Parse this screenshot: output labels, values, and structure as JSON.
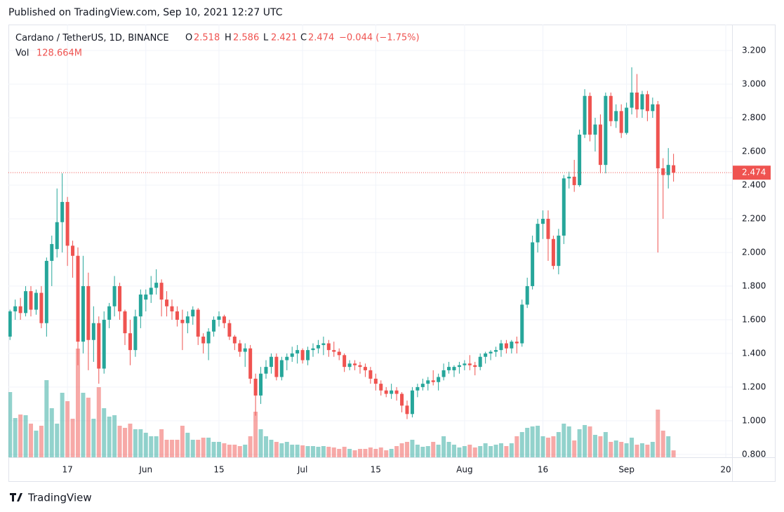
{
  "header": "Published on TradingView.com, Sep 10, 2021 12:27 UTC",
  "footer": "TradingView",
  "chart_data": {
    "type": "candlestick",
    "title": "Cardano / TetherUS, 1D, BINANCE",
    "ohlc_labels": [
      "O",
      "H",
      "L",
      "C"
    ],
    "change": "−0.044 (−1.75%)",
    "volume_title": "Vol",
    "volume_label": "128.664M",
    "up_color": "#26a69a",
    "down_color": "#ef5350",
    "open": [
      1.5,
      1.65,
      1.68,
      1.64,
      1.77,
      1.66,
      1.76,
      1.58,
      1.95,
      2.02,
      2.18,
      2.3,
      2.04,
      1.98,
      1.47,
      1.8,
      1.48,
      1.58,
      1.31,
      1.6,
      1.68,
      1.8,
      1.65,
      1.52,
      1.42,
      1.62,
      1.72,
      1.75,
      1.79,
      1.82,
      1.72,
      1.68,
      1.65,
      1.6,
      1.58,
      1.62,
      1.66,
      1.5,
      1.46,
      1.53,
      1.6,
      1.62,
      1.58,
      1.5,
      1.46,
      1.41,
      1.43,
      1.25,
      1.15,
      1.28,
      1.32,
      1.38,
      1.26,
      1.36,
      1.38,
      1.4,
      1.42,
      1.36,
      1.42,
      1.43,
      1.45,
      1.46,
      1.42,
      1.41,
      1.39,
      1.32,
      1.34,
      1.33,
      1.32,
      1.3,
      1.25,
      1.22,
      1.18,
      1.16,
      1.18,
      1.16,
      1.09,
      1.04,
      1.18,
      1.2,
      1.22,
      1.24,
      1.23,
      1.26,
      1.3,
      1.3,
      1.32,
      1.33,
      1.34,
      1.33,
      1.32,
      1.38,
      1.4,
      1.41,
      1.42,
      1.46,
      1.43,
      1.47,
      1.46,
      1.69,
      1.8,
      2.06,
      2.17,
      2.2,
      2.08,
      1.92,
      2.1,
      2.44,
      2.45,
      2.4,
      2.7,
      2.93,
      2.7,
      2.76,
      2.52,
      2.93,
      2.78,
      2.84,
      2.71,
      2.86,
      2.95,
      2.85,
      2.94,
      2.84,
      2.88,
      2.5,
      2.46,
      2.518
    ],
    "high": [
      1.66,
      1.72,
      1.73,
      1.8,
      1.8,
      1.78,
      1.8,
      1.97,
      2.1,
      2.38,
      2.47,
      2.33,
      2.07,
      2.03,
      1.98,
      1.88,
      1.68,
      1.62,
      1.65,
      1.7,
      1.86,
      1.82,
      1.66,
      1.6,
      1.66,
      1.78,
      1.78,
      1.86,
      1.9,
      1.84,
      1.77,
      1.72,
      1.68,
      1.66,
      1.65,
      1.68,
      1.67,
      1.52,
      1.55,
      1.62,
      1.65,
      1.63,
      1.6,
      1.51,
      1.48,
      1.46,
      1.45,
      1.28,
      1.32,
      1.36,
      1.4,
      1.4,
      1.38,
      1.4,
      1.44,
      1.45,
      1.43,
      1.44,
      1.46,
      1.48,
      1.5,
      1.48,
      1.47,
      1.43,
      1.4,
      1.36,
      1.36,
      1.35,
      1.34,
      1.32,
      1.28,
      1.24,
      1.2,
      1.22,
      1.2,
      1.17,
      1.12,
      1.2,
      1.22,
      1.25,
      1.26,
      1.3,
      1.28,
      1.34,
      1.35,
      1.33,
      1.35,
      1.36,
      1.39,
      1.35,
      1.4,
      1.41,
      1.42,
      1.44,
      1.48,
      1.48,
      1.48,
      1.5,
      1.72,
      1.85,
      2.1,
      2.2,
      2.25,
      2.25,
      2.1,
      2.14,
      2.46,
      2.48,
      2.55,
      2.73,
      2.97,
      2.95,
      2.8,
      2.82,
      2.95,
      2.95,
      2.88,
      2.88,
      2.89,
      3.1,
      3.06,
      2.96,
      2.96,
      2.92,
      2.9,
      2.56,
      2.62,
      2.586
    ],
    "low": [
      1.48,
      1.6,
      1.6,
      1.62,
      1.62,
      1.63,
      1.55,
      1.5,
      1.8,
      1.97,
      2.0,
      1.92,
      1.85,
      1.33,
      1.4,
      1.3,
      1.35,
      1.22,
      1.28,
      1.55,
      1.62,
      1.6,
      1.45,
      1.33,
      1.38,
      1.55,
      1.65,
      1.7,
      1.75,
      1.62,
      1.62,
      1.6,
      1.56,
      1.42,
      1.52,
      1.57,
      1.45,
      1.4,
      1.36,
      1.5,
      1.56,
      1.55,
      1.48,
      1.42,
      1.38,
      1.32,
      1.22,
      1.03,
      1.1,
      1.25,
      1.28,
      1.24,
      1.24,
      1.3,
      1.35,
      1.34,
      1.34,
      1.33,
      1.38,
      1.4,
      1.39,
      1.38,
      1.38,
      1.36,
      1.29,
      1.3,
      1.3,
      1.28,
      1.26,
      1.22,
      1.18,
      1.15,
      1.14,
      1.13,
      1.12,
      1.05,
      1.01,
      1.02,
      1.14,
      1.18,
      1.18,
      1.21,
      1.18,
      1.24,
      1.28,
      1.26,
      1.28,
      1.3,
      1.3,
      1.27,
      1.3,
      1.34,
      1.36,
      1.38,
      1.38,
      1.4,
      1.4,
      1.4,
      1.44,
      1.67,
      1.78,
      2.0,
      2.08,
      1.95,
      1.9,
      1.87,
      2.05,
      2.38,
      2.36,
      2.39,
      2.68,
      2.66,
      2.6,
      2.47,
      2.47,
      2.75,
      2.74,
      2.68,
      2.7,
      2.82,
      2.8,
      2.8,
      2.78,
      2.8,
      2.0,
      2.2,
      2.38,
      2.421
    ],
    "close": [
      1.65,
      1.68,
      1.64,
      1.77,
      1.66,
      1.76,
      1.58,
      1.95,
      2.05,
      2.18,
      2.3,
      2.04,
      1.98,
      1.47,
      1.8,
      1.48,
      1.58,
      1.31,
      1.6,
      1.68,
      1.8,
      1.65,
      1.52,
      1.42,
      1.62,
      1.75,
      1.75,
      1.79,
      1.82,
      1.72,
      1.68,
      1.65,
      1.6,
      1.58,
      1.62,
      1.66,
      1.5,
      1.46,
      1.53,
      1.6,
      1.62,
      1.58,
      1.5,
      1.46,
      1.41,
      1.43,
      1.25,
      1.15,
      1.28,
      1.32,
      1.38,
      1.26,
      1.36,
      1.38,
      1.4,
      1.42,
      1.36,
      1.42,
      1.43,
      1.45,
      1.46,
      1.42,
      1.41,
      1.39,
      1.32,
      1.34,
      1.33,
      1.32,
      1.3,
      1.25,
      1.22,
      1.18,
      1.16,
      1.18,
      1.16,
      1.09,
      1.04,
      1.18,
      1.2,
      1.22,
      1.24,
      1.23,
      1.26,
      1.3,
      1.32,
      1.32,
      1.33,
      1.34,
      1.33,
      1.32,
      1.38,
      1.4,
      1.41,
      1.42,
      1.46,
      1.43,
      1.47,
      1.46,
      1.69,
      1.8,
      2.06,
      2.17,
      2.2,
      2.08,
      1.92,
      2.1,
      2.44,
      2.45,
      2.4,
      2.7,
      2.93,
      2.7,
      2.76,
      2.52,
      2.93,
      2.78,
      2.84,
      2.71,
      2.86,
      2.95,
      2.85,
      2.94,
      2.84,
      2.88,
      2.5,
      2.46,
      2.52,
      2.474
    ],
    "volume": [
      1209,
      728,
      793,
      780,
      624,
      494,
      585,
      1430,
      910,
      624,
      1196,
      1040,
      715,
      2015,
      1196,
      1105,
      715,
      1300,
      910,
      754,
      780,
      585,
      546,
      624,
      520,
      520,
      455,
      390,
      390,
      520,
      325,
      325,
      325,
      585,
      455,
      325,
      325,
      364,
      364,
      286,
      286,
      260,
      234,
      234,
      208,
      234,
      390,
      845,
      520,
      390,
      325,
      286,
      260,
      286,
      234,
      234,
      221,
      208,
      208,
      195,
      208,
      195,
      182,
      156,
      195,
      156,
      130,
      156,
      156,
      182,
      156,
      182,
      130,
      156,
      208,
      260,
      286,
      325,
      234,
      195,
      208,
      286,
      234,
      390,
      286,
      234,
      182,
      208,
      234,
      182,
      208,
      260,
      208,
      234,
      260,
      208,
      260,
      390,
      468,
      546,
      572,
      585,
      390,
      364,
      390,
      468,
      624,
      572,
      312,
      520,
      598,
      572,
      416,
      390,
      468,
      286,
      312,
      286,
      260,
      364,
      234,
      260,
      234,
      286,
      884,
      494,
      390,
      128.664
    ],
    "xlim": [
      -0.3,
      138.2
    ],
    "xticks": [
      {
        "value": 11,
        "label": "17"
      },
      {
        "value": 26,
        "label": "Jun"
      },
      {
        "value": 40,
        "label": "15"
      },
      {
        "value": 56,
        "label": "Jul"
      },
      {
        "value": 70,
        "label": "15"
      },
      {
        "value": 87,
        "label": "Aug"
      },
      {
        "value": 102,
        "label": "16"
      },
      {
        "value": 118,
        "label": "Sep"
      },
      {
        "value": 137,
        "label": "20"
      }
    ],
    "ylim": [
      0.783,
      3.354
    ],
    "yticks": [
      {
        "value": 0.8,
        "label": "0.800"
      },
      {
        "value": 1.0,
        "label": "1.000"
      },
      {
        "value": 1.2,
        "label": "1.200"
      },
      {
        "value": 1.4,
        "label": "1.400"
      },
      {
        "value": 1.6,
        "label": "1.600"
      },
      {
        "value": 1.8,
        "label": "1.800"
      },
      {
        "value": 2.0,
        "label": "2.000"
      },
      {
        "value": 2.2,
        "label": "2.200"
      },
      {
        "value": 2.4,
        "label": "2.400"
      },
      {
        "value": 2.6,
        "label": "2.600"
      },
      {
        "value": 2.8,
        "label": "2.800"
      },
      {
        "value": 3.0,
        "label": "3.000"
      },
      {
        "value": 3.2,
        "label": "3.200"
      }
    ],
    "grid": true
  }
}
